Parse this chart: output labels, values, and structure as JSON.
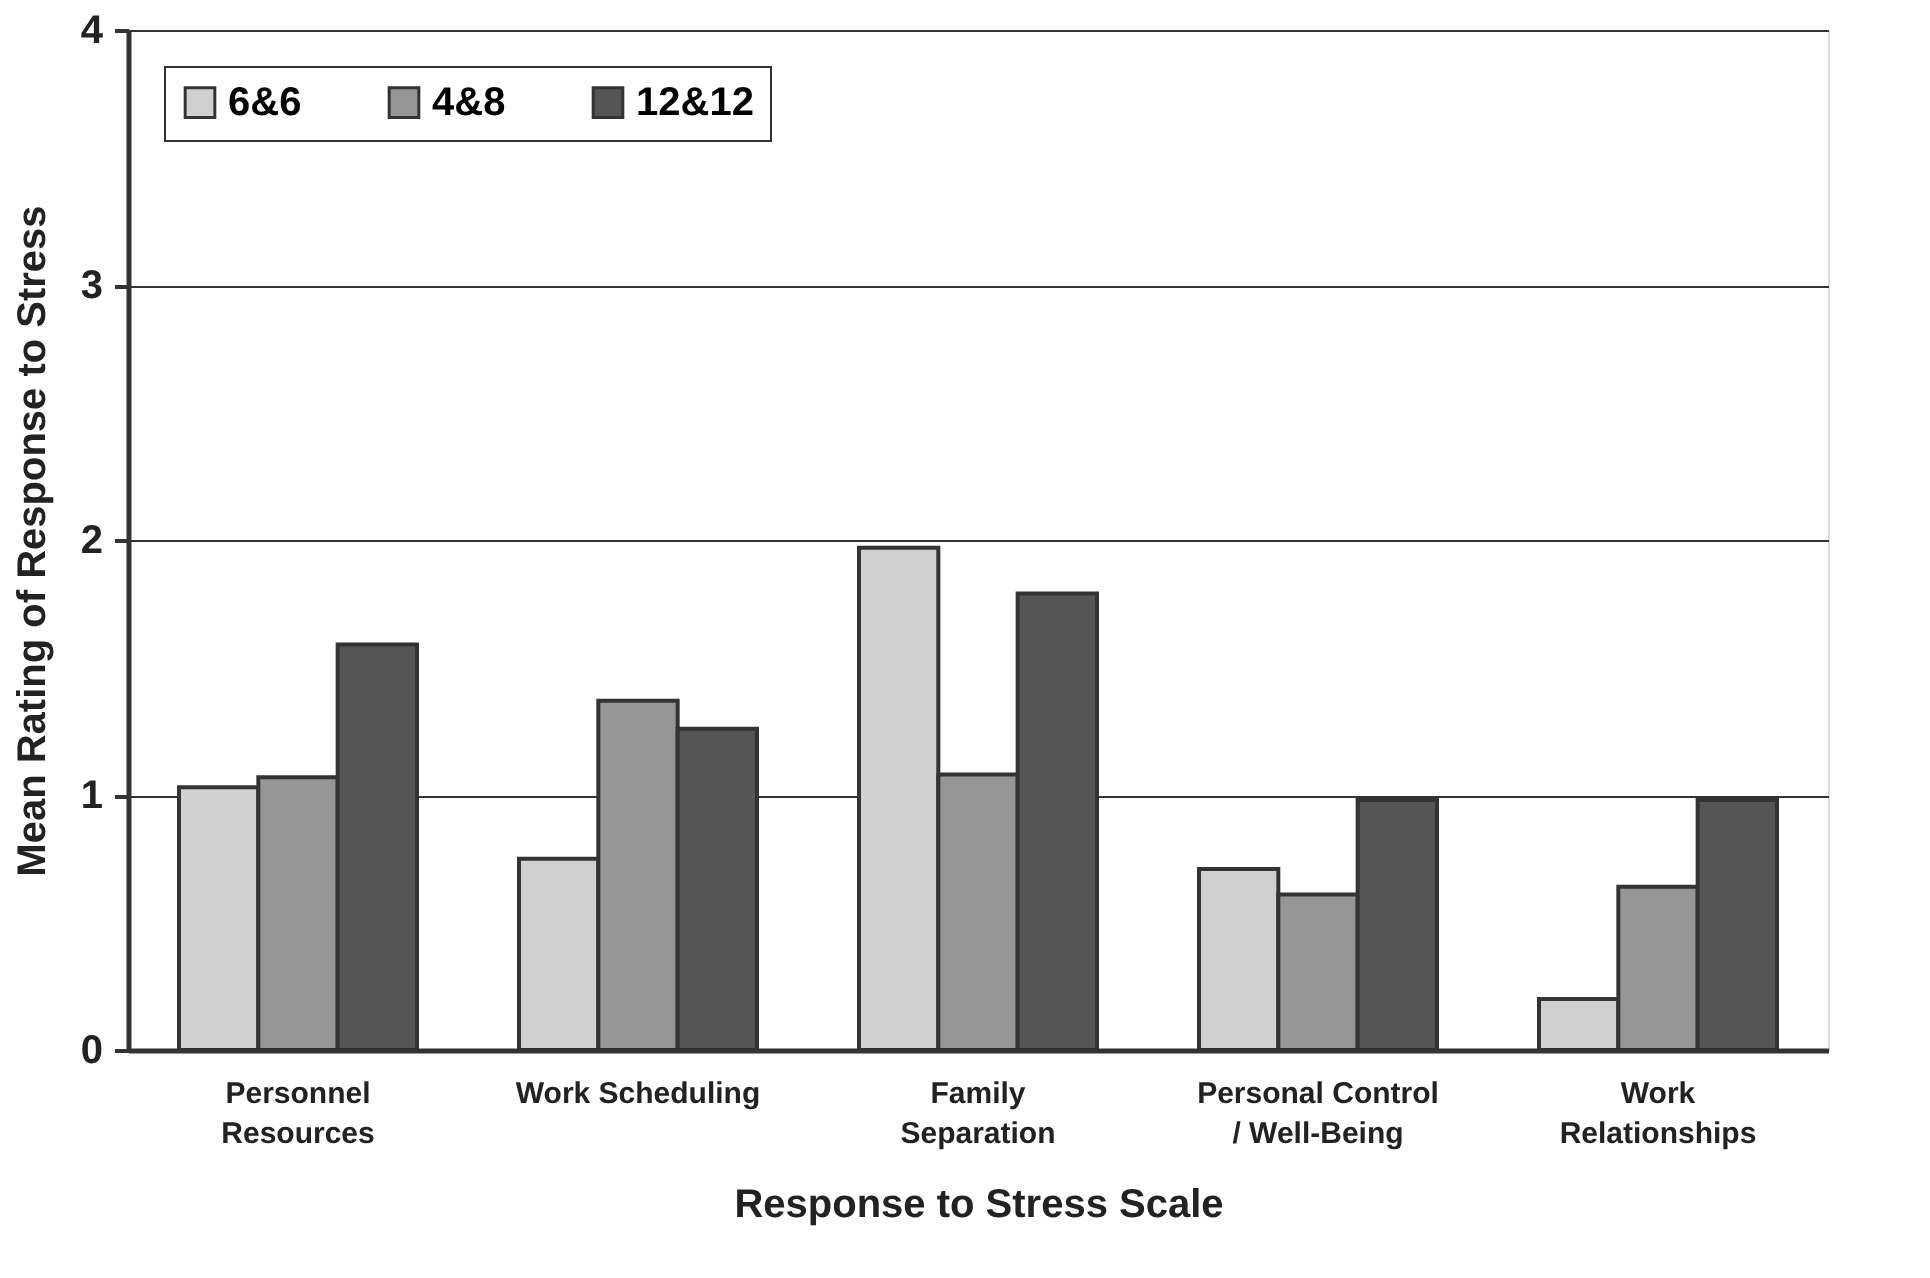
{
  "chart_data": {
    "type": "bar",
    "xlabel": "Response to Stress Scale",
    "ylabel": "Mean Rating of Response to Stress",
    "categories": [
      "Personnel\nResources",
      "Work Scheduling",
      "Family\nSeparation",
      "Personal Control\n/ Well-Being",
      "Work\nRelationships"
    ],
    "series": [
      {
        "name": "6&6",
        "color": "#d0d0d0",
        "values": [
          1.03,
          0.75,
          1.97,
          0.71,
          0.2
        ]
      },
      {
        "name": "4&8",
        "color": "#969696",
        "values": [
          1.07,
          1.37,
          1.08,
          0.61,
          0.64
        ]
      },
      {
        "name": "12&12",
        "color": "#555555",
        "values": [
          1.59,
          1.26,
          1.79,
          0.98,
          0.98
        ]
      }
    ],
    "ylim": [
      0,
      4
    ],
    "yticks": [
      0,
      1,
      2,
      3,
      4
    ],
    "grid": "y",
    "legend": "top left"
  }
}
